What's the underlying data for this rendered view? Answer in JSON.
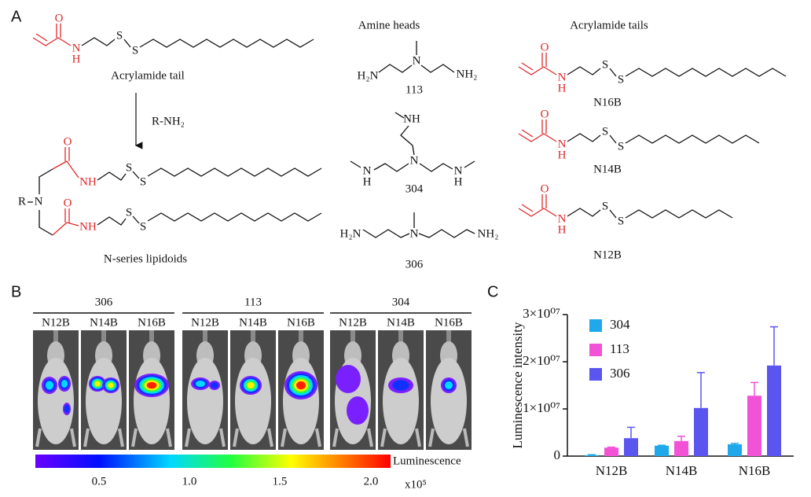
{
  "panel_labels": {
    "a": "A",
    "b": "B",
    "c": "C"
  },
  "atoms": {
    "O": "O",
    "N": "N",
    "H": "H",
    "S": "S",
    "R": "R",
    "NH": "NH",
    "H2N": "H₂N",
    "NH2": "NH₂"
  },
  "scheme": {
    "reactant": "Acrylamide tail",
    "reagent": "R-NH₂",
    "product": "N-series lipidoids"
  },
  "amine_heads": {
    "title": "Amine heads",
    "names": [
      "113",
      "304",
      "306"
    ]
  },
  "acrylamide_tails": {
    "title": "Acrylamide tails",
    "names": [
      "N16B",
      "N14B",
      "N12B"
    ]
  },
  "imaging": {
    "groups": [
      {
        "amine": "306",
        "lipids": [
          "N12B",
          "N14B",
          "N16B"
        ]
      },
      {
        "amine": "113",
        "lipids": [
          "N12B",
          "N14B",
          "N16B"
        ]
      },
      {
        "amine": "304",
        "lipids": [
          "N12B",
          "N14B",
          "N16B"
        ]
      }
    ],
    "colorbar": {
      "label": "Luminescence",
      "ticks": [
        "0.5",
        "1.0",
        "1.5",
        "2.0"
      ],
      "unit": "x10⁵"
    }
  },
  "chart_data": {
    "type": "bar",
    "ylabel": "Luminescence intensity",
    "categories": [
      "N12B",
      "N14B",
      "N16B"
    ],
    "series": [
      {
        "name": "304",
        "color": "#1fa8ea",
        "values": [
          200000,
          2200000,
          2500000
        ],
        "errors": [
          100000,
          100000,
          200000
        ]
      },
      {
        "name": "113",
        "color": "#f252d6",
        "values": [
          1800000,
          3200000,
          12800000
        ],
        "errors": [
          100000,
          1000000,
          2800000
        ]
      },
      {
        "name": "306",
        "color": "#5b55f0",
        "values": [
          3800000,
          10200000,
          19200000
        ],
        "errors": [
          2300000,
          7500000,
          8200000
        ]
      }
    ],
    "ylim": [
      0,
      30000000
    ],
    "yticks": [
      0,
      {
        "value": 10000000,
        "label": "1×10⁰⁷"
      },
      {
        "value": 20000000,
        "label": "2×10⁰⁷"
      },
      {
        "value": 30000000,
        "label": "3×10⁰⁷"
      }
    ],
    "legend": "upper left"
  }
}
